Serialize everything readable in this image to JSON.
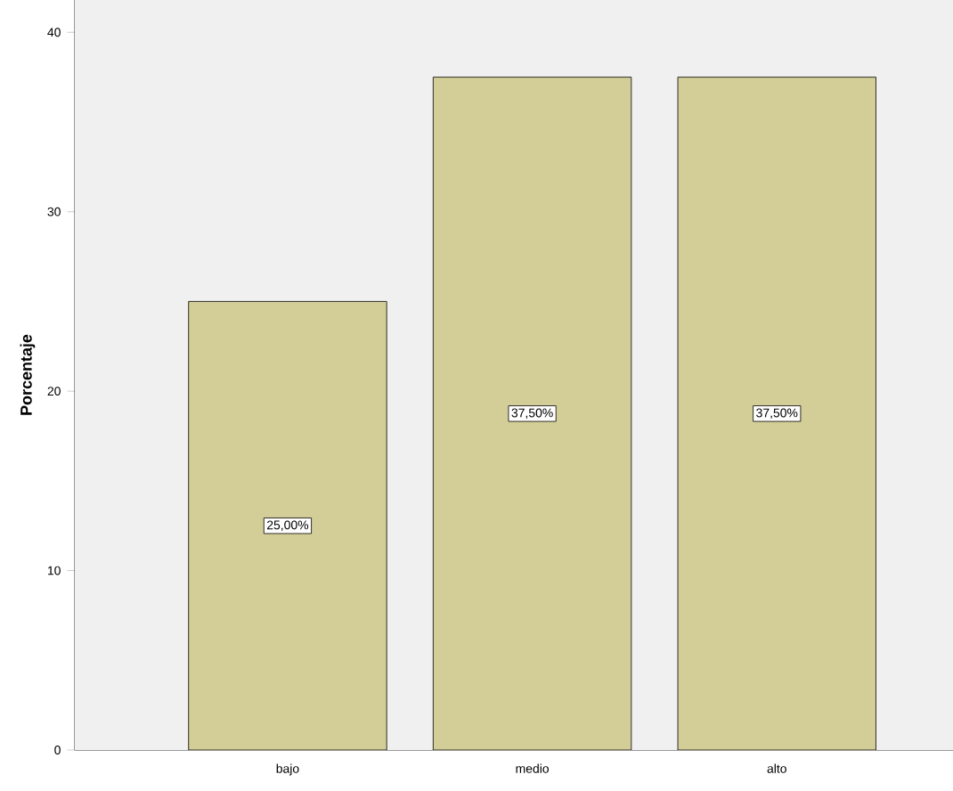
{
  "chart_data": {
    "type": "bar",
    "ylabel": "Porcentaje",
    "categories": [
      "bajo",
      "medio",
      "alto"
    ],
    "values": [
      25,
      37.5,
      37.5
    ],
    "value_labels": [
      "25,00%",
      "37,50%",
      "37,50%"
    ],
    "color": "#d3ce98",
    "ylim": [
      0,
      41.8
    ],
    "yticks": [
      0,
      10,
      20,
      30,
      40
    ],
    "grid": false
  }
}
